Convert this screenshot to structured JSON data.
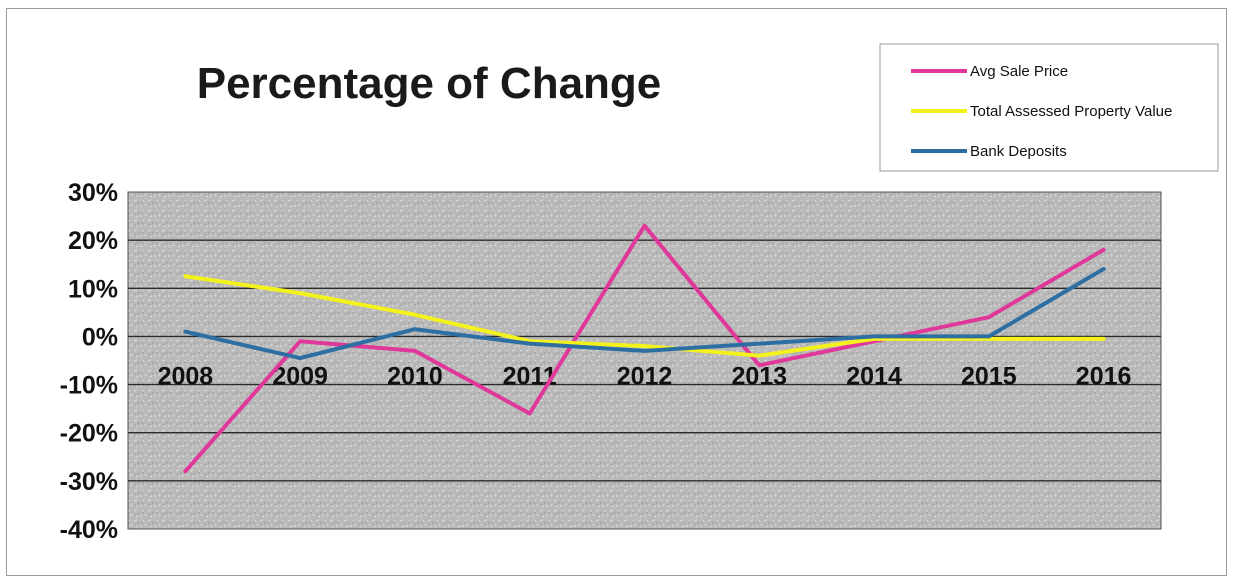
{
  "chart_data": {
    "type": "line",
    "title": "Percentage of Change",
    "xlabel": "",
    "ylabel": "",
    "categories": [
      "2008",
      "2009",
      "2010",
      "2011",
      "2012",
      "2013",
      "2014",
      "2015",
      "2016"
    ],
    "ylim": [
      -40,
      30
    ],
    "y_ticks": [
      30,
      20,
      10,
      0,
      -10,
      -20,
      -30,
      -40
    ],
    "y_tick_labels": [
      "30%",
      "20%",
      "10%",
      "0%",
      "-10%",
      "-20%",
      "-30%",
      "-40%"
    ],
    "grid": true,
    "legend_position": "top-right",
    "series": [
      {
        "name": "Avg Sale Price",
        "color": "#e0389a",
        "values": [
          -28,
          -1,
          -3,
          -16,
          23,
          -6,
          -1,
          4,
          18
        ]
      },
      {
        "name": "Total Assessed Property Value",
        "color": "#f4f21c",
        "values": [
          12.5,
          9,
          4.5,
          -1,
          -2,
          -4,
          -0.5,
          -0.5,
          -0.5
        ]
      },
      {
        "name": "Bank Deposits",
        "color": "#2e6fa3",
        "values": [
          1,
          -4.5,
          1.5,
          -1.5,
          -3,
          -1.5,
          0,
          0,
          14
        ]
      }
    ]
  }
}
